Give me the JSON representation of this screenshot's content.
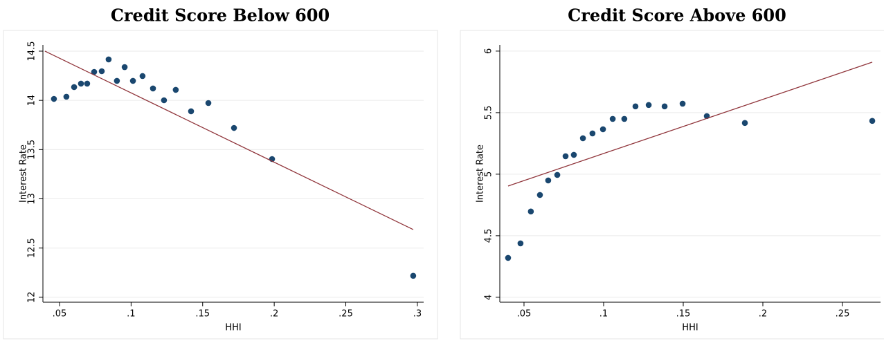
{
  "chart_data": [
    {
      "type": "scatter",
      "title": "Credit Score Below 600",
      "xlabel": "HHI",
      "ylabel": "Interest Rate",
      "xlim": [
        0.0384,
        0.3044
      ],
      "ylim": [
        11.95,
        14.563
      ],
      "xticks": [
        {
          "value": 0.05,
          "label": ".05"
        },
        {
          "value": 0.1,
          "label": ".1"
        },
        {
          "value": 0.15,
          "label": ".15"
        },
        {
          "value": 0.2,
          "label": ".2"
        },
        {
          "value": 0.25,
          "label": ".25"
        },
        {
          "value": 0.3,
          "label": ".3"
        }
      ],
      "yticks": [
        12,
        12.5,
        13,
        13.5,
        14,
        14.5
      ],
      "grid": true,
      "series": [
        {
          "type": "scatter",
          "color": "#1a476f",
          "x": [
            0.0461,
            0.0548,
            0.0602,
            0.065,
            0.0693,
            0.0742,
            0.0795,
            0.0843,
            0.0901,
            0.0955,
            0.1013,
            0.108,
            0.1153,
            0.123,
            0.1312,
            0.1419,
            0.154,
            0.1719,
            0.1985,
            0.2971
          ],
          "values": [
            14.015,
            14.037,
            14.135,
            14.17,
            14.17,
            14.289,
            14.296,
            14.416,
            14.198,
            14.338,
            14.198,
            14.247,
            14.121,
            14.001,
            14.107,
            13.889,
            13.973,
            13.72,
            13.404,
            12.218
          ]
        },
        {
          "type": "line",
          "color": "#90353b",
          "x": [
            0.0398,
            0.2971
          ],
          "values": [
            14.5,
            12.688
          ]
        }
      ]
    },
    {
      "type": "scatter",
      "title": "Credit Score Above 600",
      "xlabel": "HHI",
      "ylabel": "Interest Rate",
      "xlim": [
        0.0348,
        0.2739
      ],
      "ylim": [
        3.96,
        6.05
      ],
      "xticks": [
        {
          "value": 0.05,
          "label": ".05"
        },
        {
          "value": 0.1,
          "label": ".1"
        },
        {
          "value": 0.15,
          "label": ".15"
        },
        {
          "value": 0.2,
          "label": ".2"
        },
        {
          "value": 0.25,
          "label": ".25"
        }
      ],
      "yticks": [
        4,
        4.5,
        5,
        5.5,
        6
      ],
      "grid": true,
      "series": [
        {
          "type": "scatter",
          "color": "#1a476f",
          "x": [
            0.04,
            0.0478,
            0.0543,
            0.06,
            0.0652,
            0.0709,
            0.0761,
            0.0813,
            0.087,
            0.093,
            0.0996,
            0.1057,
            0.113,
            0.12,
            0.1283,
            0.1383,
            0.1496,
            0.1648,
            0.1887,
            0.2687
          ],
          "values": [
            4.32,
            4.438,
            4.697,
            4.831,
            4.949,
            4.994,
            5.146,
            5.157,
            5.292,
            5.331,
            5.365,
            5.449,
            5.449,
            5.551,
            5.562,
            5.551,
            5.573,
            5.472,
            5.416,
            5.433
          ]
        },
        {
          "type": "line",
          "color": "#90353b",
          "x": [
            0.04,
            0.2687
          ],
          "values": [
            4.904,
            5.91
          ]
        }
      ]
    }
  ]
}
